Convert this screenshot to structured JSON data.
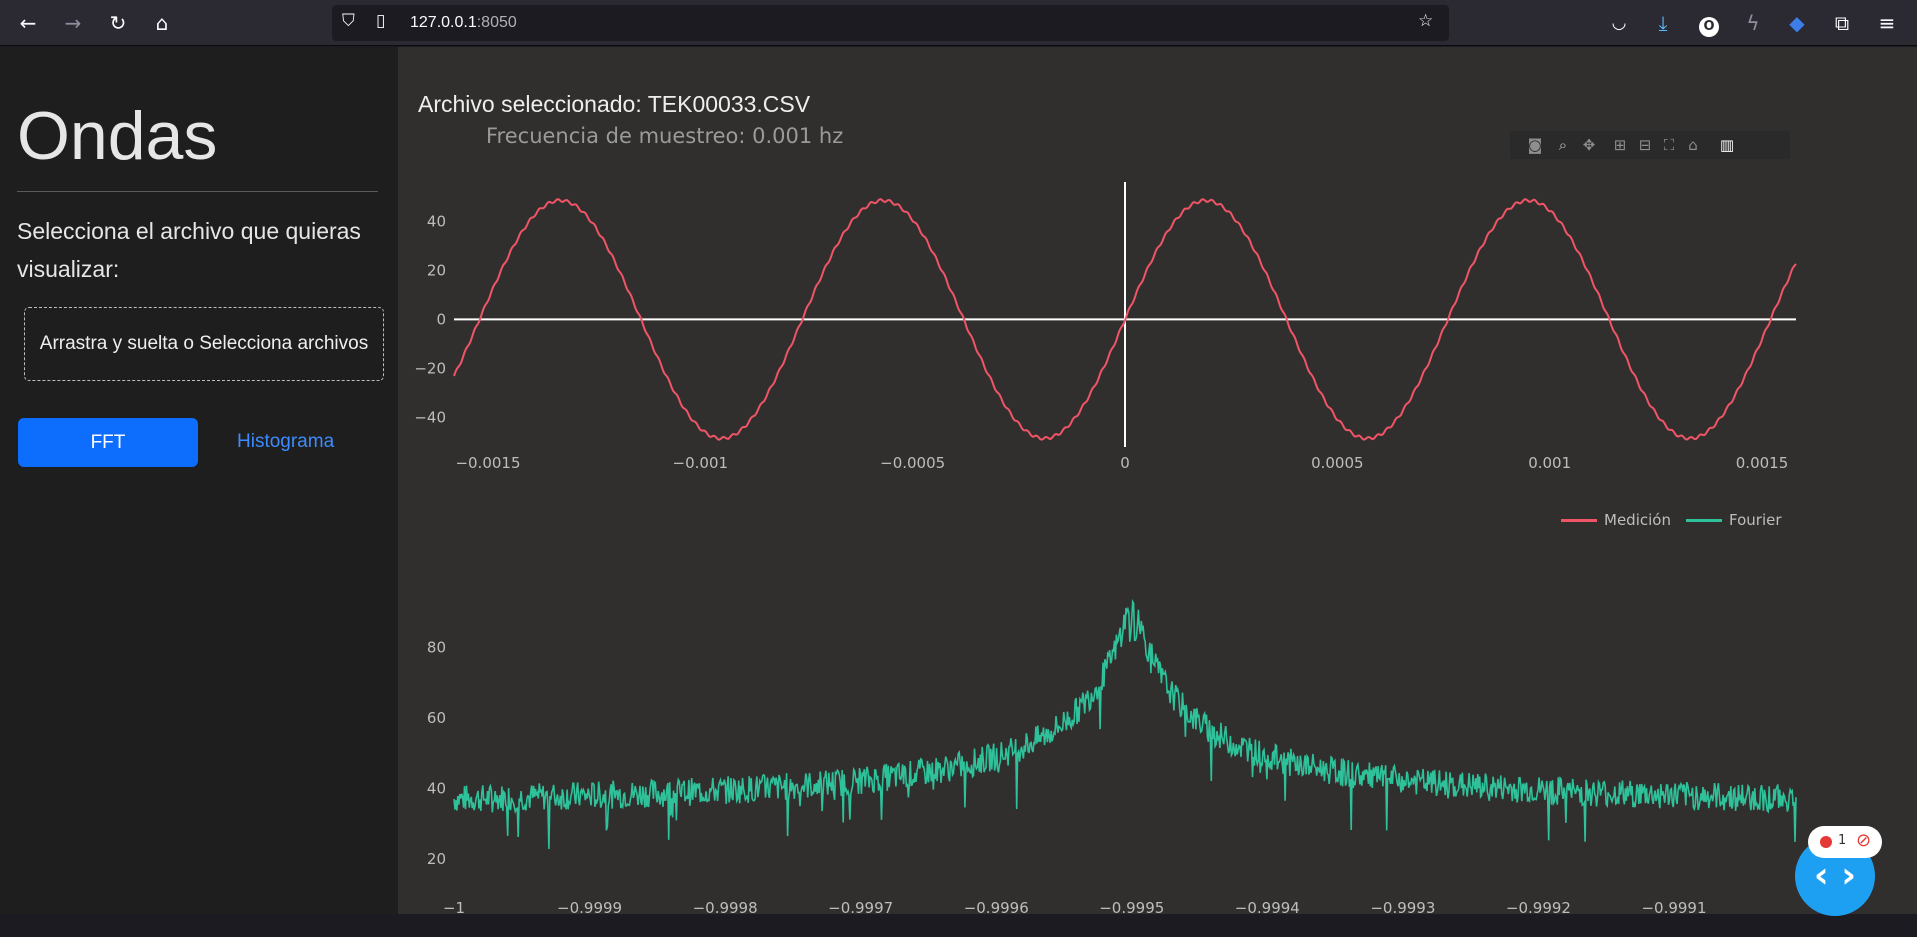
{
  "browser": {
    "url_host": "127.0.0.1",
    "url_port": ":8050",
    "icons": [
      "back-icon",
      "forward-icon",
      "reload-icon",
      "home-icon",
      "shield-icon",
      "page-icon",
      "star-icon",
      "pocket-icon",
      "download-icon",
      "extension-o-icon",
      "bolt-icon",
      "cap-icon",
      "puzzle-icon",
      "menu-icon"
    ]
  },
  "sidebar": {
    "title": "Ondas",
    "instruction": "Selecciona el archivo que quieras visualizar:",
    "dropzone": "Arrastra y suelta o Selecciona archivos",
    "fft_button": "FFT",
    "hist_link": "Histograma"
  },
  "main": {
    "file_title": "Archivo seleccionado: TEK00033.CSV",
    "sample_rate": "Frecuencia de muestreo: 0.001 hz",
    "modebar_icons": [
      "camera-icon",
      "zoom-icon",
      "pan-icon",
      "zoom-in-icon",
      "zoom-out-icon",
      "autoscale-icon",
      "reset-axes-icon",
      "plotly-logo-icon"
    ]
  },
  "chart_data": [
    {
      "type": "line",
      "title": "",
      "xlabel": "",
      "ylabel": "",
      "xlim": [
        -0.00158,
        0.00158
      ],
      "ylim": [
        -52,
        56
      ],
      "x_ticks": [
        "−0.0015",
        "−0.001",
        "−0.0005",
        "0",
        "0.0005",
        "0.001",
        "0.0015"
      ],
      "x_tick_values": [
        -0.0015,
        -0.001,
        -0.0005,
        0,
        0.0005,
        0.001,
        0.0015
      ],
      "y_ticks": [
        "40",
        "20",
        "0",
        "−20",
        "−40"
      ],
      "y_tick_values": [
        40,
        20,
        0,
        -20,
        -40
      ],
      "series": [
        {
          "name": "Medición",
          "color": "#ef5566",
          "amplitude": 48.5,
          "period": 0.00076,
          "phase_zero": 0.0
        }
      ],
      "grid": false
    },
    {
      "type": "line",
      "title": "",
      "xlabel": "",
      "ylabel": "",
      "xlim": [
        -1.0,
        -0.99901
      ],
      "ylim": [
        12,
        100
      ],
      "x_ticks": [
        "−1",
        "−0.9999",
        "−0.9998",
        "−0.9997",
        "−0.9996",
        "−0.9995",
        "−0.9994",
        "−0.9993",
        "−0.9992",
        "−0.9991"
      ],
      "x_tick_values": [
        -1.0,
        -0.9999,
        -0.9998,
        -0.9997,
        -0.9996,
        -0.9995,
        -0.9994,
        -0.9993,
        -0.9992,
        -0.9991
      ],
      "y_ticks": [
        "80",
        "60",
        "40",
        "20"
      ],
      "y_tick_values": [
        80,
        60,
        40,
        20
      ],
      "series": [
        {
          "name": "Fourier",
          "color": "#2ec19a",
          "baseline": 36,
          "peak_x": -0.9995,
          "peak_y": 93
        }
      ],
      "grid": false
    }
  ],
  "legend": [
    {
      "name": "Medición",
      "color": "#ef5566"
    },
    {
      "name": "Fourier",
      "color": "#2ec19a"
    }
  ],
  "widgets": {
    "error_count": "1"
  }
}
